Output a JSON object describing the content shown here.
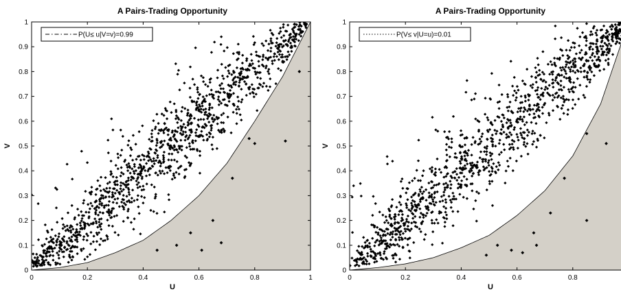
{
  "chart_data": [
    {
      "type": "scatter",
      "title": "A Pairs-Trading Opportunity",
      "xlabel": "U",
      "ylabel": "V",
      "xlim": [
        0,
        1
      ],
      "ylim": [
        0,
        1
      ],
      "xticks": [
        "0",
        "0.2",
        "0.4",
        "0.6",
        "0.8",
        "1"
      ],
      "yticks": [
        "0",
        "0.1",
        "0.2",
        "0.3",
        "0.4",
        "0.5",
        "0.6",
        "0.7",
        "0.8",
        "0.9",
        "1"
      ],
      "legend": {
        "label": "P(U≤ u|V=v)=0.99",
        "line_style": "dash-dot",
        "placement": "top-left"
      },
      "boundary_curve": {
        "style": "dash-dot",
        "u": [
          0.0,
          0.1,
          0.2,
          0.3,
          0.4,
          0.5,
          0.6,
          0.7,
          0.8,
          0.9,
          1.0
        ],
        "v": [
          0.0,
          0.01,
          0.03,
          0.07,
          0.12,
          0.2,
          0.3,
          0.43,
          0.6,
          0.78,
          1.0
        ]
      },
      "shaded_region": "below boundary curve",
      "shade_color": "#d4d0c8",
      "outliers": [
        {
          "u": 0.96,
          "v": 0.8
        },
        {
          "u": 0.91,
          "v": 0.52
        },
        {
          "u": 0.8,
          "v": 0.51
        },
        {
          "u": 0.72,
          "v": 0.37
        },
        {
          "u": 0.78,
          "v": 0.53
        },
        {
          "u": 0.65,
          "v": 0.2
        },
        {
          "u": 0.57,
          "v": 0.15
        },
        {
          "u": 0.68,
          "v": 0.11
        },
        {
          "u": 0.52,
          "v": 0.1
        },
        {
          "u": 0.45,
          "v": 0.08
        },
        {
          "u": 0.61,
          "v": 0.08
        }
      ],
      "point_count": 1200,
      "point_color": "#000000"
    },
    {
      "type": "scatter",
      "title": "A Pairs-Trading Opportunity",
      "xlabel": "U",
      "ylabel": "V",
      "xlim": [
        0,
        1
      ],
      "ylim": [
        0,
        1
      ],
      "xticks": [
        "0",
        "0.2",
        "0.4",
        "0.6",
        "0.8"
      ],
      "yticks": [
        "0",
        "0.1",
        "0.2",
        "0.3",
        "0.4",
        "0.5",
        "0.6",
        "0.7",
        "0.8",
        "0.9",
        "1"
      ],
      "legend": {
        "label": "P(V≤ v|U=u)=0.01",
        "line_style": "dotted",
        "placement": "top-left"
      },
      "boundary_curve": {
        "style": "dotted",
        "u": [
          0.0,
          0.1,
          0.2,
          0.3,
          0.4,
          0.5,
          0.6,
          0.7,
          0.8,
          0.9,
          1.0
        ],
        "v": [
          0.0,
          0.01,
          0.025,
          0.05,
          0.09,
          0.14,
          0.22,
          0.32,
          0.46,
          0.67,
          1.0
        ]
      },
      "shaded_region": "below boundary curve",
      "shade_color": "#d4d0c8",
      "outliers": [
        {
          "u": 0.85,
          "v": 0.55
        },
        {
          "u": 0.92,
          "v": 0.51
        },
        {
          "u": 0.77,
          "v": 0.37
        },
        {
          "u": 0.72,
          "v": 0.23
        },
        {
          "u": 0.85,
          "v": 0.2
        },
        {
          "u": 0.66,
          "v": 0.15
        },
        {
          "u": 0.58,
          "v": 0.08
        },
        {
          "u": 0.67,
          "v": 0.1
        },
        {
          "u": 0.53,
          "v": 0.1
        },
        {
          "u": 0.49,
          "v": 0.06
        },
        {
          "u": 0.62,
          "v": 0.07
        }
      ],
      "point_count": 1200,
      "point_color": "#000000"
    }
  ]
}
